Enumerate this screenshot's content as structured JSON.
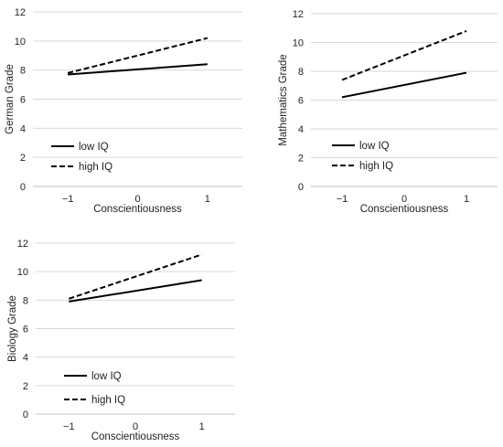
{
  "chart_data": [
    {
      "type": "line",
      "title": "",
      "xlabel": "Conscientiousness",
      "ylabel": "German Grade",
      "x_ticks": [
        "−1",
        "0",
        "1"
      ],
      "x": [
        -1,
        1
      ],
      "xlim": [
        -1.5,
        1.5
      ],
      "ylim": [
        0,
        12
      ],
      "y_ticks": [
        0,
        2,
        4,
        6,
        8,
        10,
        12
      ],
      "grid": "horizontal",
      "legend": "bottom-left",
      "series": [
        {
          "name": "low IQ",
          "style": "solid",
          "values": [
            7.7,
            8.4
          ]
        },
        {
          "name": "high IQ",
          "style": "dashed",
          "values": [
            7.8,
            10.2
          ]
        }
      ]
    },
    {
      "type": "line",
      "title": "",
      "xlabel": "Conscientiousness",
      "ylabel": "Mathematics Grade",
      "x_ticks": [
        "−1",
        "0",
        "1"
      ],
      "x": [
        -1,
        1
      ],
      "xlim": [
        -1.5,
        1.5
      ],
      "ylim": [
        0,
        12
      ],
      "y_ticks": [
        0,
        2,
        4,
        6,
        8,
        10,
        12
      ],
      "grid": "horizontal",
      "legend": "bottom-left",
      "series": [
        {
          "name": "low IQ",
          "style": "solid",
          "values": [
            6.2,
            7.9
          ]
        },
        {
          "name": "high IQ",
          "style": "dashed",
          "values": [
            7.4,
            10.8
          ]
        }
      ]
    },
    {
      "type": "line",
      "title": "",
      "xlabel": "Conscientiousness",
      "ylabel": "Biology Grade",
      "x_ticks": [
        "−1",
        "0",
        "1"
      ],
      "x": [
        -1,
        1
      ],
      "xlim": [
        -1.5,
        1.5
      ],
      "ylim": [
        0,
        12
      ],
      "y_ticks": [
        0,
        2,
        4,
        6,
        8,
        10,
        12
      ],
      "grid": "horizontal",
      "legend": "bottom-left",
      "series": [
        {
          "name": "low IQ",
          "style": "solid",
          "values": [
            7.9,
            9.4
          ]
        },
        {
          "name": "high IQ",
          "style": "dashed",
          "values": [
            8.1,
            11.2
          ]
        }
      ]
    }
  ]
}
